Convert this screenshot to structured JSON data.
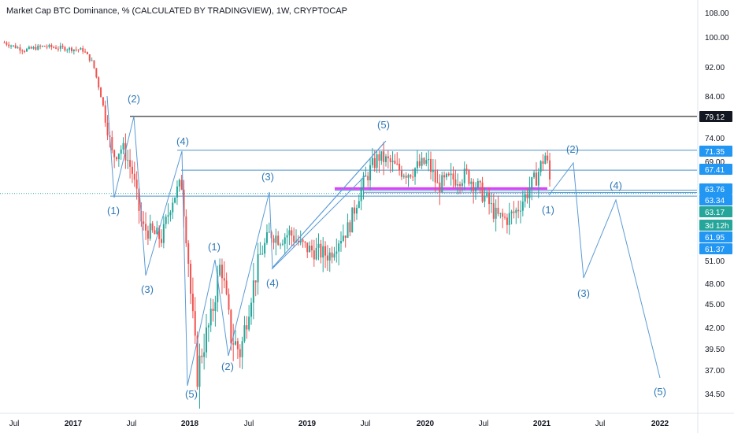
{
  "title": "Market Cap BTC Dominance, % (CALCULATED BY TRADINGVIEW), 1W, CRYPTOCAP",
  "colors": {
    "up": "#26a69a",
    "down": "#ef5350",
    "wave": "#5b9bd5",
    "hline": "#4a90c8",
    "black_line": "#000000",
    "magenta": "#e040fb",
    "tag_blue": "#2196f3",
    "tag_green": "#26a69a",
    "tag_black": "#131722"
  },
  "chart_data": {
    "type": "candlestick",
    "y_ticks": [
      "108.00",
      "100.00",
      "92.00",
      "84.00",
      "74.00",
      "69.00",
      "51.00",
      "48.00",
      "45.00",
      "42.00",
      "39.50",
      "37.00",
      "34.50"
    ],
    "x_ticks": [
      {
        "label": "Jul",
        "bold": false
      },
      {
        "label": "2017",
        "bold": true
      },
      {
        "label": "Jul",
        "bold": false
      },
      {
        "label": "2018",
        "bold": true
      },
      {
        "label": "Jul",
        "bold": false
      },
      {
        "label": "2019",
        "bold": true
      },
      {
        "label": "Jul",
        "bold": false
      },
      {
        "label": "2020",
        "bold": true
      },
      {
        "label": "Jul",
        "bold": false
      },
      {
        "label": "2021",
        "bold": true
      },
      {
        "label": "Jul",
        "bold": false
      },
      {
        "label": "2022",
        "bold": true
      }
    ],
    "price_tags": [
      {
        "label": "79.12",
        "style": "black"
      },
      {
        "label": "71.35",
        "style": "blue"
      },
      {
        "label": "67.41",
        "style": "blue"
      },
      {
        "label": "63.76",
        "style": "blue"
      },
      {
        "label": "63.34",
        "style": "blue"
      },
      {
        "label": "63.17",
        "style": "green"
      },
      {
        "label": "3d 12h",
        "style": "green"
      },
      {
        "label": "61.95",
        "style": "blue"
      },
      {
        "label": "61.37",
        "style": "blue"
      }
    ],
    "horizontal_levels": [
      79.12,
      71.35,
      67.41,
      63.76,
      63.34
    ],
    "price_path": [
      [
        "2016-06",
        98.5
      ],
      [
        "2016-08",
        96.5
      ],
      [
        "2016-10",
        97.5
      ],
      [
        "2016-12",
        97
      ],
      [
        "2017-02",
        96.5
      ],
      [
        "2017-03",
        93
      ],
      [
        "2017-04",
        82
      ],
      [
        "2017-05",
        70
      ],
      [
        "2017-06",
        72
      ],
      [
        "2017-07",
        67
      ],
      [
        "2017-08",
        57
      ],
      [
        "2017-09",
        56
      ],
      [
        "2017-10",
        55
      ],
      [
        "2017-11",
        62
      ],
      [
        "2017-12",
        65
      ],
      [
        "2018-01",
        45
      ],
      [
        "2018-01b",
        36.5
      ],
      [
        "2018-02",
        39
      ],
      [
        "2018-03",
        43
      ],
      [
        "2018-04",
        51
      ],
      [
        "2018-05",
        41
      ],
      [
        "2018-06",
        39
      ],
      [
        "2018-07",
        46
      ],
      [
        "2018-08",
        52
      ],
      [
        "2018-09",
        56
      ],
      [
        "2018-10",
        55
      ],
      [
        "2018-11",
        56
      ],
      [
        "2018-12",
        54
      ],
      [
        "2019-01",
        53
      ],
      [
        "2019-02",
        52.5
      ],
      [
        "2019-03",
        52
      ],
      [
        "2019-04",
        55
      ],
      [
        "2019-05",
        57
      ],
      [
        "2019-06",
        63
      ],
      [
        "2019-07",
        67
      ],
      [
        "2019-08",
        70
      ],
      [
        "2019-09",
        69
      ],
      [
        "2019-10",
        67.5
      ],
      [
        "2019-11",
        67
      ],
      [
        "2019-12",
        68
      ],
      [
        "2020-01",
        69
      ],
      [
        "2020-02",
        64.5
      ],
      [
        "2020-03",
        65.5
      ],
      [
        "2020-04",
        66
      ],
      [
        "2020-05",
        66.5
      ],
      [
        "2020-06",
        64.5
      ],
      [
        "2020-07",
        62
      ],
      [
        "2020-08",
        59
      ],
      [
        "2020-09",
        58.5
      ],
      [
        "2020-10",
        60
      ],
      [
        "2020-11",
        63
      ],
      [
        "2020-12",
        66
      ],
      [
        "2021-01",
        70.5
      ],
      [
        "2021-01b",
        63.2
      ]
    ],
    "wave_labels": [
      {
        "label": "(2)",
        "at": "2017-06"
      },
      {
        "label": "(1)",
        "at": "2017-04"
      },
      {
        "label": "(3)",
        "at": "2017-09"
      },
      {
        "label": "(4)",
        "at": "2017-12"
      },
      {
        "label": "(5)",
        "at": "2018-01"
      },
      {
        "label": "(1)",
        "at": "2018-04"
      },
      {
        "label": "(2)",
        "at": "2018-06"
      },
      {
        "label": "(3)",
        "at": "2018-08"
      },
      {
        "label": "(4)",
        "at": "2018-09"
      },
      {
        "label": "(5)",
        "at": "2019-08"
      },
      {
        "label": "(1)",
        "at": "2021-01"
      },
      {
        "label": "(2)",
        "at": "2021-03"
      },
      {
        "label": "(3)",
        "at": "2021-05"
      },
      {
        "label": "(4)",
        "at": "2021-08"
      },
      {
        "label": "(5)",
        "at": "2021-12"
      }
    ]
  }
}
